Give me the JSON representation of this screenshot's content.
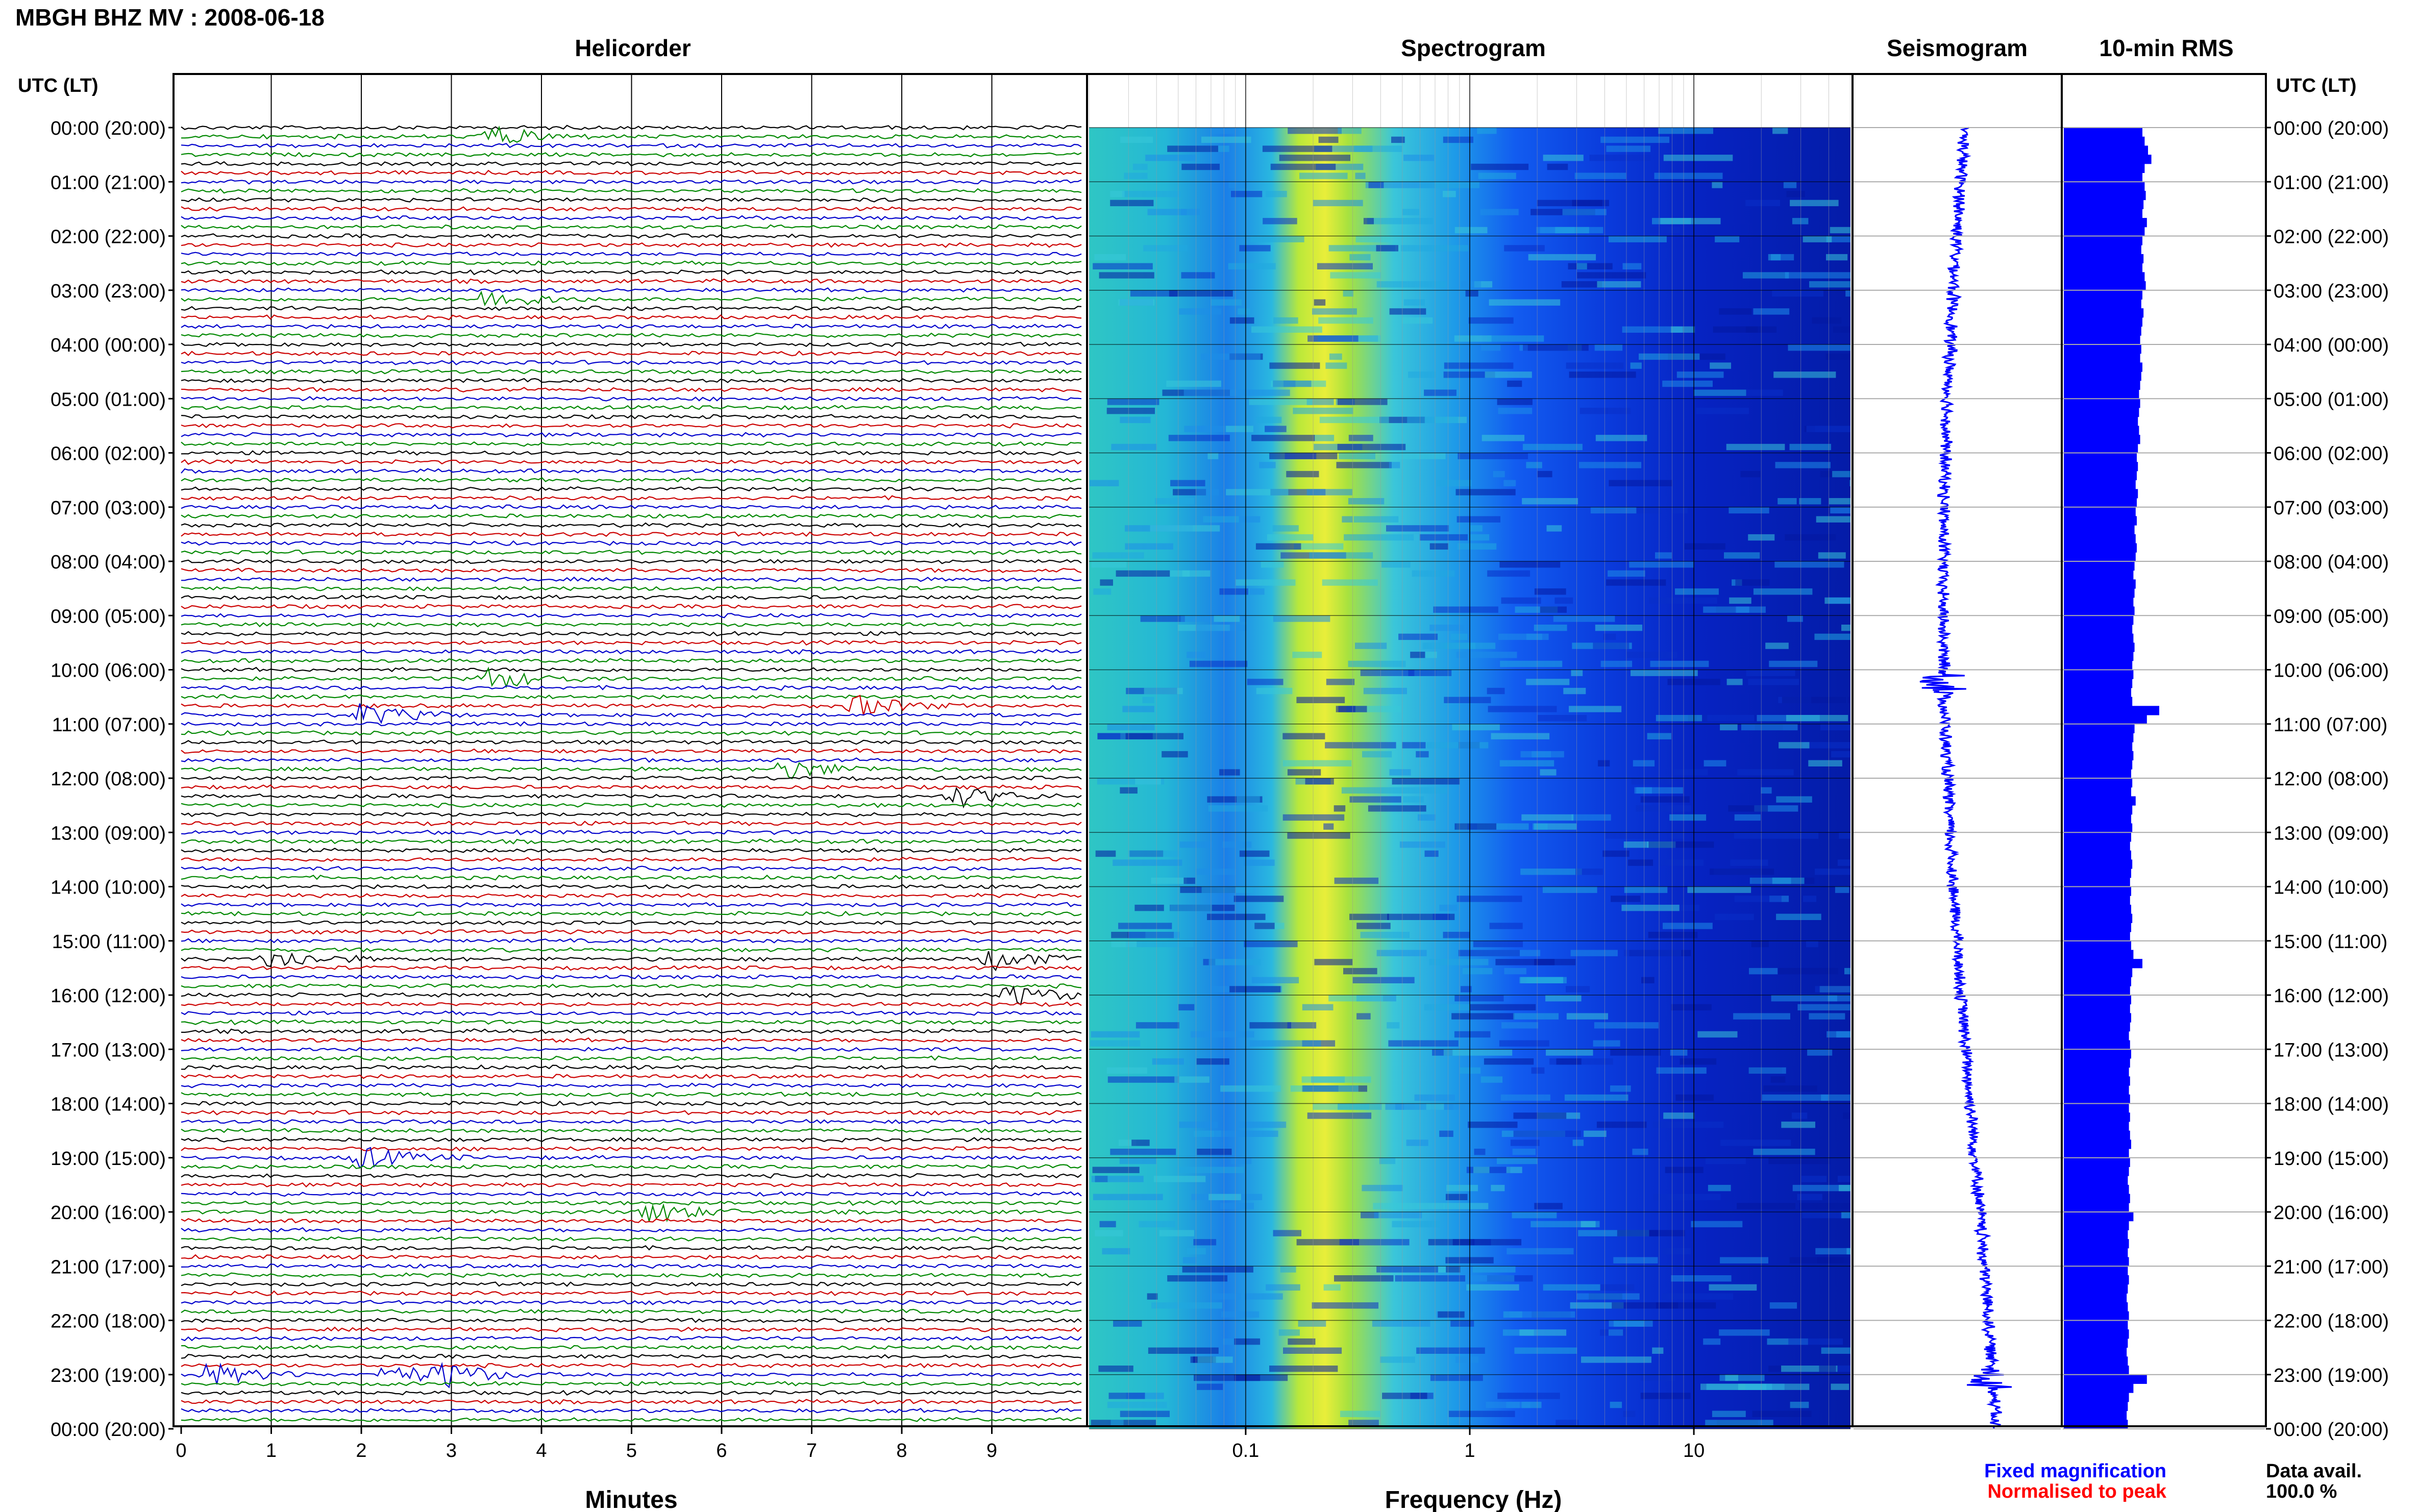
{
  "header": {
    "title": "MBGH BHZ MV : 2008-06-18",
    "utc_label_left": "UTC (LT)",
    "utc_label_right": "UTC (LT)"
  },
  "panels": {
    "helicorder": "Helicorder",
    "spectrogram": "Spectrogram",
    "seismogram": "Seismogram",
    "rms": "10-min RMS"
  },
  "time_labels": [
    "00:00 (20:00)",
    "01:00 (21:00)",
    "02:00 (22:00)",
    "03:00 (23:00)",
    "04:00 (00:00)",
    "05:00 (01:00)",
    "06:00 (02:00)",
    "07:00 (03:00)",
    "08:00 (04:00)",
    "09:00 (05:00)",
    "10:00 (06:00)",
    "11:00 (07:00)",
    "12:00 (08:00)",
    "13:00 (09:00)",
    "14:00 (10:00)",
    "15:00 (11:00)",
    "16:00 (12:00)",
    "17:00 (13:00)",
    "18:00 (14:00)",
    "19:00 (15:00)",
    "20:00 (16:00)",
    "21:00 (17:00)",
    "22:00 (18:00)",
    "23:00 (19:00)",
    "00:00 (20:00)"
  ],
  "footer": {
    "minutes_label": "Minutes",
    "frequency_label": "Frequency (Hz)",
    "fixed_magnification": "Fixed magnification",
    "normalised_to_peak": "Normalised to peak",
    "data_avail_label": "Data avail.",
    "data_avail_value": "100.0 %"
  },
  "colors": {
    "fixed_magnification": "#0000ff",
    "normalised_to_peak": "#ff0000",
    "trace_colors": [
      "#000000",
      "#cc0000",
      "#0000cc",
      "#008800"
    ],
    "rms_bar": "#0000ff"
  },
  "chart_data": [
    {
      "type": "helicorder",
      "title": "Helicorder",
      "xlabel": "Minutes",
      "x_ticks": [
        0,
        1,
        2,
        3,
        4,
        5,
        6,
        7,
        8,
        9
      ],
      "xlim": [
        0,
        10
      ],
      "lines_per_hour": 6,
      "hours": 24,
      "events": [
        {
          "line": 1,
          "minute": 3.4,
          "color_index": 3
        },
        {
          "line": 19,
          "minute": 3.4,
          "color_index": 3
        },
        {
          "line": 61,
          "minute": 3.4,
          "color_index": 3
        },
        {
          "line": 64,
          "minute": 7.5,
          "color_index": 1
        },
        {
          "line": 65,
          "minute": 2.0,
          "color_index": 2
        },
        {
          "line": 71,
          "minute": 6.7,
          "color_index": 3
        },
        {
          "line": 74,
          "minute": 8.6,
          "color_index": 0
        },
        {
          "line": 92,
          "minute": 1.0,
          "color_index": 0
        },
        {
          "line": 92,
          "minute": 9.0,
          "color_index": 3
        },
        {
          "line": 96,
          "minute": 9.2,
          "color_index": 0
        },
        {
          "line": 114,
          "minute": 2.0,
          "color_index": 2
        },
        {
          "line": 120,
          "minute": 5.2,
          "color_index": 3
        },
        {
          "line": 138,
          "minute": 0.3,
          "color_index": 2
        },
        {
          "line": 138,
          "minute": 2.3,
          "color_index": 2
        },
        {
          "line": 138,
          "minute": 2.9,
          "color_index": 2
        }
      ]
    },
    {
      "type": "heatmap",
      "title": "Spectrogram",
      "xlabel": "Frequency (Hz)",
      "x_scale": "log",
      "xlim": [
        0.02,
        50
      ],
      "x_tick_labels": [
        "0.1",
        "1",
        "10"
      ],
      "peak_frequency_hz": 0.3
    },
    {
      "type": "line",
      "title": "Seismogram",
      "description_values": "24-hour compressed trace"
    },
    {
      "type": "bar",
      "title": "10-min RMS",
      "orientation": "horizontal",
      "hours": 24,
      "values": [
        0.7,
        0.72,
        0.75,
        0.78,
        0.72,
        0.7,
        0.72,
        0.73,
        0.71,
        0.7,
        0.74,
        0.72,
        0.7,
        0.69,
        0.71,
        0.7,
        0.72,
        0.73,
        0.7,
        0.69,
        0.71,
        0.7,
        0.69,
        0.68,
        0.69,
        0.68,
        0.7,
        0.69,
        0.68,
        0.67,
        0.68,
        0.67,
        0.66,
        0.67,
        0.68,
        0.66,
        0.65,
        0.66,
        0.65,
        0.64,
        0.66,
        0.65,
        0.64,
        0.65,
        0.63,
        0.64,
        0.65,
        0.64,
        0.63,
        0.62,
        0.64,
        0.63,
        0.62,
        0.63,
        0.62,
        0.61,
        0.62,
        0.63,
        0.62,
        0.61,
        0.62,
        0.61,
        0.6,
        0.61,
        0.85,
        0.74,
        0.63,
        0.62,
        0.61,
        0.62,
        0.61,
        0.6,
        0.61,
        0.6,
        0.64,
        0.61,
        0.6,
        0.61,
        0.6,
        0.59,
        0.6,
        0.61,
        0.6,
        0.59,
        0.6,
        0.59,
        0.6,
        0.61,
        0.6,
        0.59,
        0.6,
        0.62,
        0.7,
        0.61,
        0.6,
        0.59,
        0.6,
        0.59,
        0.6,
        0.59,
        0.58,
        0.59,
        0.6,
        0.59,
        0.58,
        0.59,
        0.58,
        0.59,
        0.58,
        0.59,
        0.58,
        0.59,
        0.6,
        0.58,
        0.59,
        0.58,
        0.57,
        0.58,
        0.59,
        0.58,
        0.62,
        0.58,
        0.57,
        0.58,
        0.57,
        0.58,
        0.57,
        0.58,
        0.57,
        0.56,
        0.57,
        0.58,
        0.57,
        0.58,
        0.57,
        0.56,
        0.57,
        0.58,
        0.74,
        0.62,
        0.58,
        0.57,
        0.56,
        0.57
      ]
    }
  ]
}
